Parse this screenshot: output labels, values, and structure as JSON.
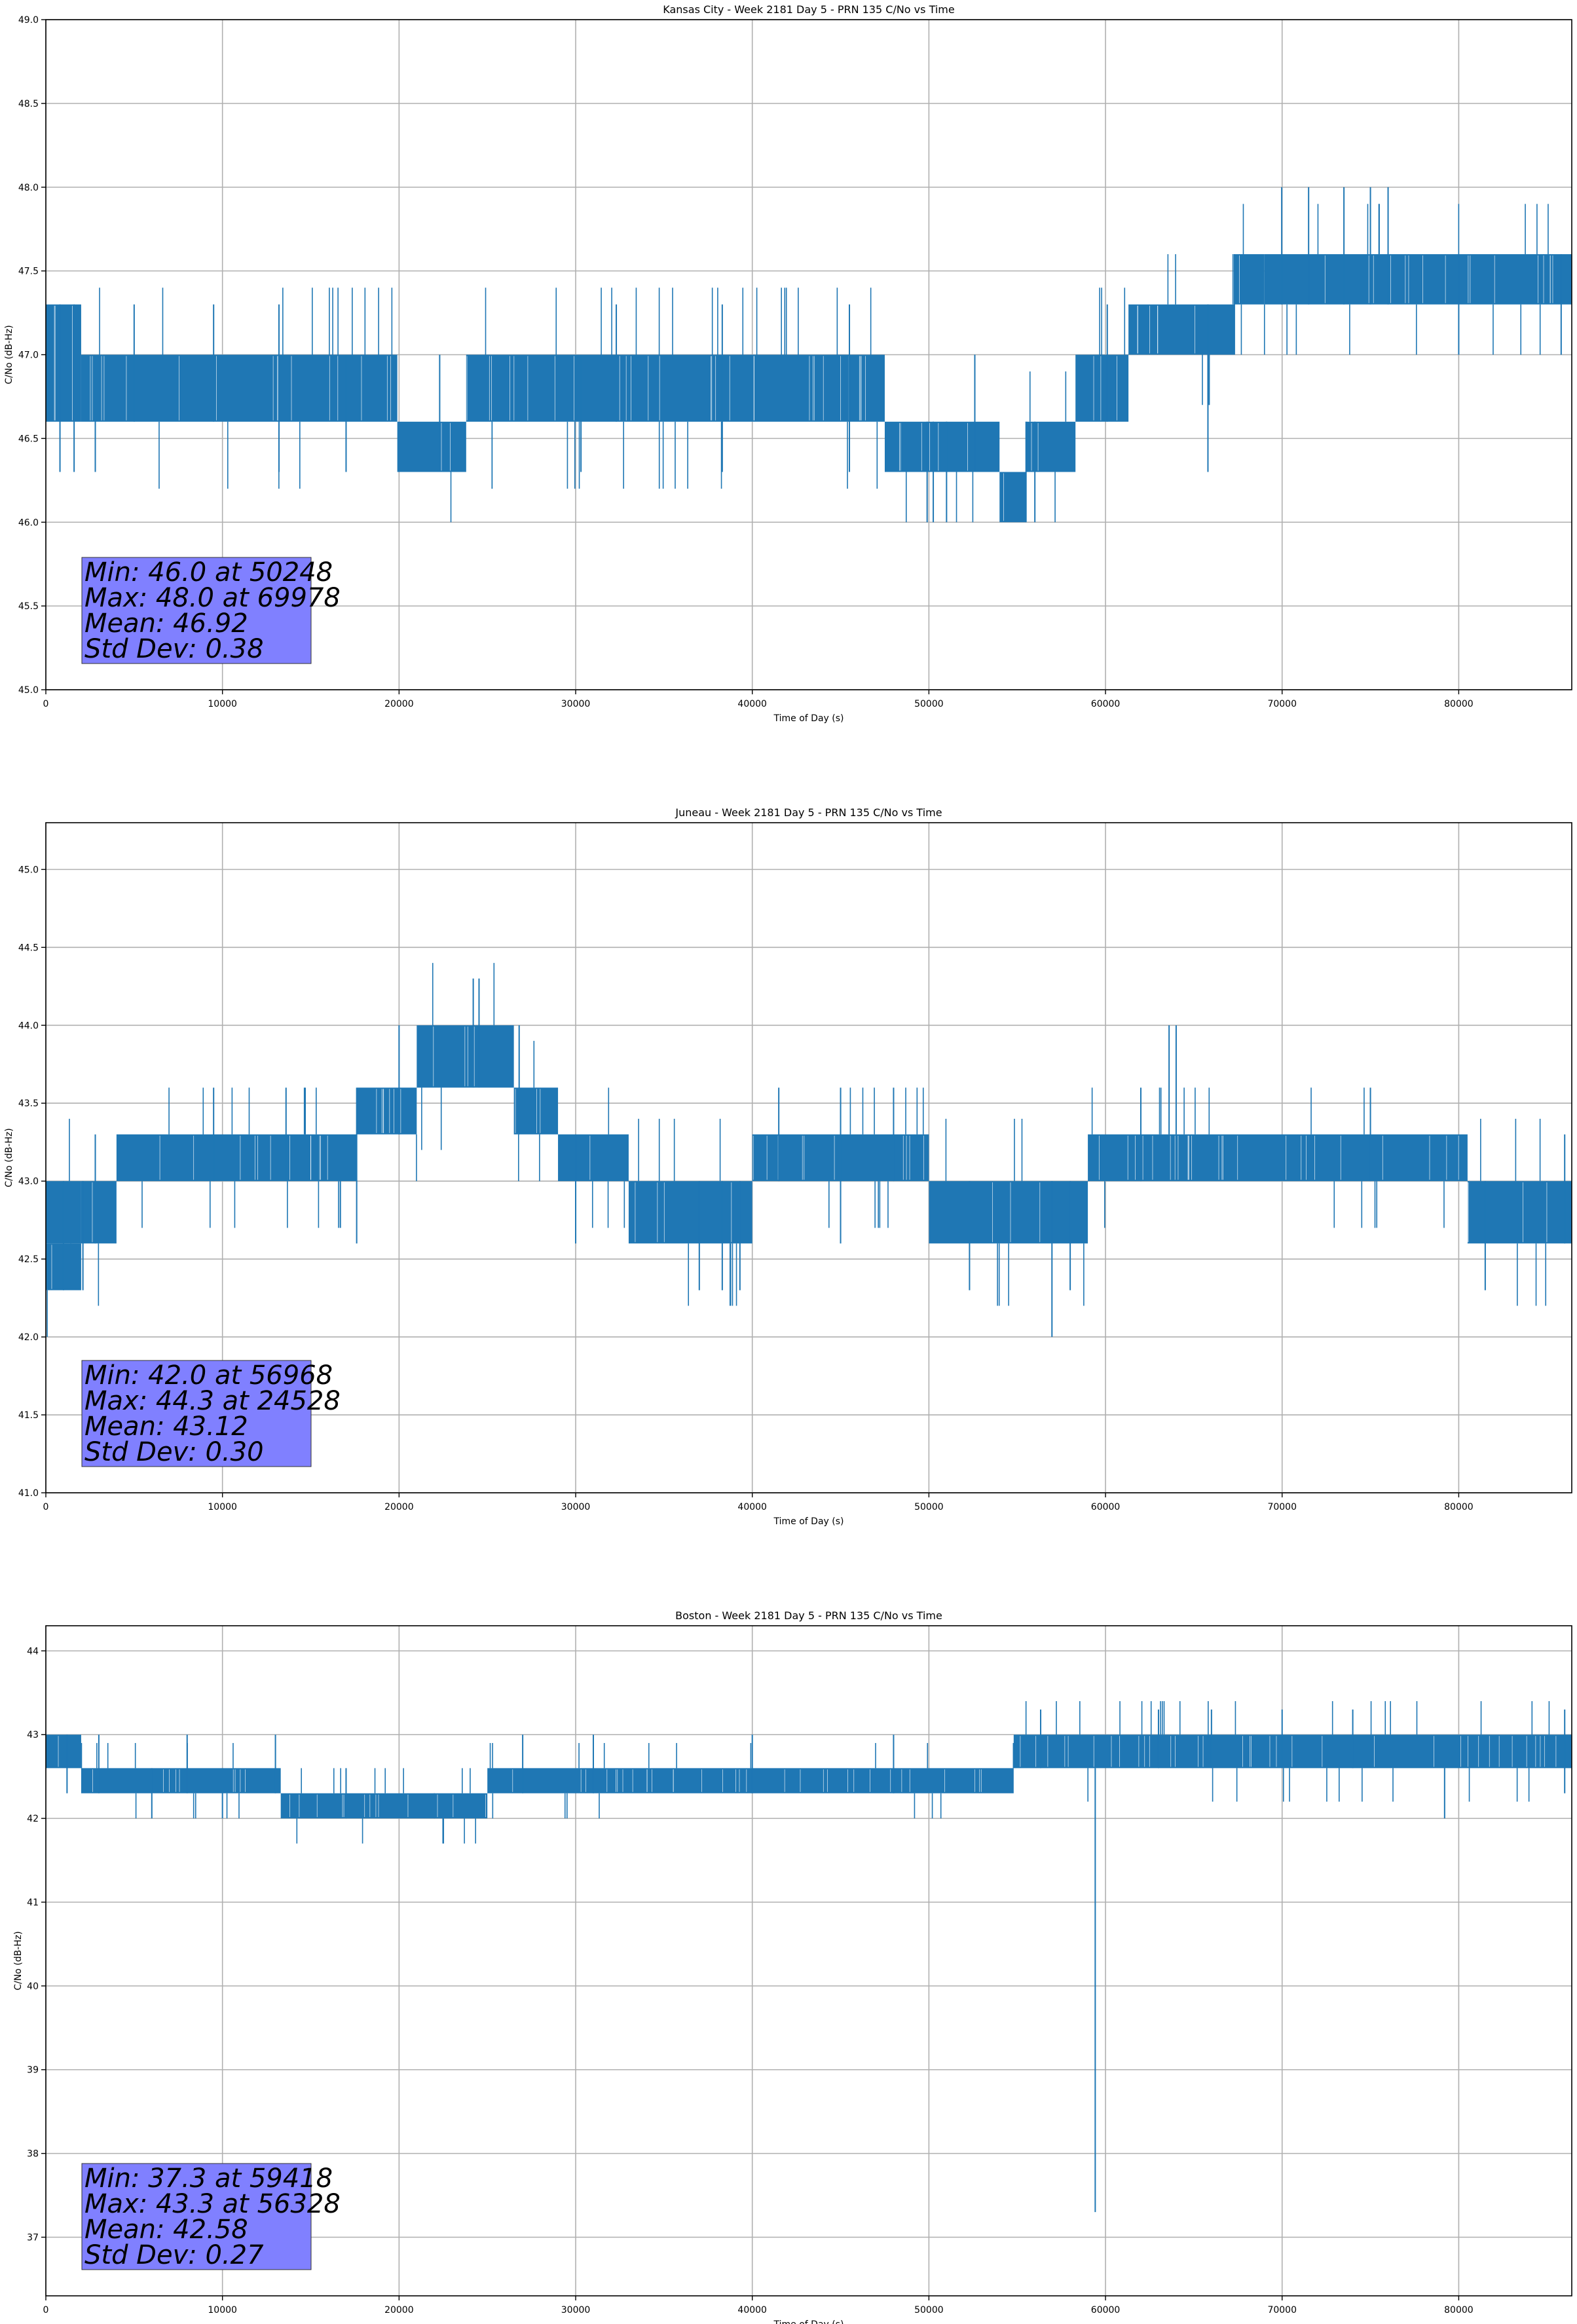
{
  "chart_data": [
    {
      "type": "line",
      "title": "Kansas City - Week 2181 Day 5 - PRN 135 C/No vs Time",
      "xlabel": "Time of Day (s)",
      "ylabel": "C/No (dB-Hz)",
      "xlim": [
        0,
        86400
      ],
      "ylim": [
        45.0,
        49.0
      ],
      "xticks": [
        "0",
        "10000",
        "20000",
        "30000",
        "40000",
        "50000",
        "60000",
        "70000",
        "80000"
      ],
      "yticks": [
        "45.0",
        "45.5",
        "46.0",
        "46.5",
        "47.0",
        "47.5",
        "48.0",
        "48.5",
        "49.0"
      ],
      "grid": true,
      "line_color": "#1f77b4",
      "stats_box_color": "#8080ff",
      "stats": [
        "Min: 46.0 at 50248",
        "Max: 48.0 at 69978",
        "Mean: 46.92",
        "Std Dev: 0.38"
      ],
      "band_segments": [
        {
          "x": [
            0,
            2000
          ],
          "range": [
            46.6,
            47.3
          ]
        },
        {
          "x": [
            2000,
            19900
          ],
          "range": [
            46.6,
            47.0
          ]
        },
        {
          "x": [
            19900,
            23800
          ],
          "range": [
            46.3,
            46.6
          ]
        },
        {
          "x": [
            23800,
            47500
          ],
          "range": [
            46.6,
            47.0
          ]
        },
        {
          "x": [
            47500,
            52600
          ],
          "range": [
            46.3,
            46.6
          ]
        },
        {
          "x": [
            52600,
            54000
          ],
          "range": [
            46.3,
            46.6
          ]
        },
        {
          "x": [
            54000,
            55500
          ],
          "range": [
            46.0,
            46.3
          ]
        },
        {
          "x": [
            55500,
            58300
          ],
          "range": [
            46.3,
            46.6
          ]
        },
        {
          "x": [
            58300,
            61300
          ],
          "range": [
            46.6,
            47.0
          ]
        },
        {
          "x": [
            61300,
            67300
          ],
          "range": [
            47.0,
            47.3
          ]
        },
        {
          "x": [
            67300,
            69000
          ],
          "range": [
            47.3,
            47.6
          ]
        },
        {
          "x": [
            69000,
            86400
          ],
          "range": [
            47.3,
            47.6
          ]
        }
      ],
      "spikes": [
        {
          "x": 800,
          "range": [
            46.3,
            47.3
          ]
        },
        {
          "x": 1600,
          "range": [
            46.3,
            47.3
          ]
        },
        {
          "x": 2800,
          "range": [
            46.3,
            47.0
          ]
        },
        {
          "x": 5000,
          "range": [
            46.6,
            47.3
          ]
        },
        {
          "x": 9500,
          "range": [
            46.6,
            47.3
          ]
        },
        {
          "x": 13200,
          "range": [
            46.3,
            47.3
          ]
        },
        {
          "x": 17000,
          "range": [
            46.3,
            47.0
          ]
        },
        {
          "x": 22300,
          "range": [
            46.3,
            47.0
          ]
        },
        {
          "x": 30300,
          "range": [
            46.3,
            47.0
          ]
        },
        {
          "x": 32300,
          "range": [
            46.6,
            47.3
          ]
        },
        {
          "x": 38300,
          "range": [
            46.3,
            47.3
          ]
        },
        {
          "x": 45500,
          "range": [
            46.3,
            47.3
          ]
        },
        {
          "x": 49900,
          "range": [
            46.0,
            46.6
          ]
        },
        {
          "x": 50248,
          "range": [
            46.0,
            46.6
          ]
        },
        {
          "x": 51000,
          "range": [
            46.0,
            46.6
          ]
        },
        {
          "x": 52600,
          "range": [
            46.3,
            47.0
          ]
        },
        {
          "x": 55500,
          "range": [
            46.0,
            46.6
          ]
        },
        {
          "x": 56000,
          "range": [
            46.0,
            46.6
          ]
        },
        {
          "x": 60100,
          "range": [
            46.6,
            47.3
          ]
        },
        {
          "x": 65800,
          "range": [
            46.3,
            47.3
          ]
        },
        {
          "x": 67300,
          "range": [
            47.0,
            47.6
          ]
        },
        {
          "x": 69978,
          "range": [
            47.3,
            48.0
          ]
        },
        {
          "x": 71500,
          "range": [
            47.3,
            48.0
          ]
        },
        {
          "x": 73500,
          "range": [
            47.3,
            48.0
          ]
        },
        {
          "x": 75000,
          "range": [
            47.3,
            48.0
          ]
        },
        {
          "x": 76000,
          "range": [
            47.3,
            48.0
          ]
        },
        {
          "x": 80000,
          "range": [
            47.0,
            47.6
          ]
        },
        {
          "x": 85800,
          "range": [
            47.0,
            47.6
          ]
        }
      ]
    },
    {
      "type": "line",
      "title": "Juneau - Week 2181 Day 5 - PRN 135 C/No vs Time",
      "xlabel": "Time of Day (s)",
      "ylabel": "C/No (dB-Hz)",
      "xlim": [
        0,
        86400
      ],
      "ylim": [
        41.0,
        45.3
      ],
      "xticks": [
        "0",
        "10000",
        "20000",
        "30000",
        "40000",
        "50000",
        "60000",
        "70000",
        "80000"
      ],
      "yticks": [
        "41.0",
        "41.5",
        "42.0",
        "42.5",
        "43.0",
        "43.5",
        "44.0",
        "44.5",
        "45.0"
      ],
      "grid": true,
      "line_color": "#1f77b4",
      "stats_box_color": "#8080ff",
      "stats": [
        "Min: 42.0 at 56968",
        "Max: 44.3 at 24528",
        "Mean: 43.12",
        "Std Dev: 0.30"
      ],
      "band_segments": [
        {
          "x": [
            0,
            2000
          ],
          "range": [
            42.3,
            42.6
          ]
        },
        {
          "x": [
            0,
            2000
          ],
          "range": [
            42.6,
            43.0
          ]
        },
        {
          "x": [
            2000,
            4000
          ],
          "range": [
            42.6,
            43.0
          ]
        },
        {
          "x": [
            4000,
            17600
          ],
          "range": [
            43.0,
            43.3
          ]
        },
        {
          "x": [
            17600,
            21000
          ],
          "range": [
            43.3,
            43.6
          ]
        },
        {
          "x": [
            21000,
            26500
          ],
          "range": [
            43.6,
            44.0
          ]
        },
        {
          "x": [
            26500,
            29000
          ],
          "range": [
            43.3,
            43.6
          ]
        },
        {
          "x": [
            29000,
            33000
          ],
          "range": [
            43.0,
            43.3
          ]
        },
        {
          "x": [
            33000,
            40000
          ],
          "range": [
            42.6,
            43.0
          ]
        },
        {
          "x": [
            40000,
            50000
          ],
          "range": [
            43.0,
            43.3
          ]
        },
        {
          "x": [
            50000,
            59000
          ],
          "range": [
            42.6,
            43.0
          ]
        },
        {
          "x": [
            59000,
            80500
          ],
          "range": [
            43.0,
            43.3
          ]
        },
        {
          "x": [
            80500,
            86400
          ],
          "range": [
            42.6,
            43.0
          ]
        }
      ],
      "spikes": [
        {
          "x": 1000,
          "range": [
            42.3,
            43.0
          ]
        },
        {
          "x": 2100,
          "range": [
            42.3,
            43.0
          ]
        },
        {
          "x": 2800,
          "range": [
            42.6,
            43.3
          ]
        },
        {
          "x": 9500,
          "range": [
            43.0,
            43.6
          ]
        },
        {
          "x": 13600,
          "range": [
            43.0,
            43.6
          ]
        },
        {
          "x": 17600,
          "range": [
            42.6,
            43.6
          ]
        },
        {
          "x": 20000,
          "range": [
            43.3,
            44.0
          ]
        },
        {
          "x": 24200,
          "range": [
            43.6,
            44.3
          ]
        },
        {
          "x": 24528,
          "range": [
            43.6,
            44.3
          ]
        },
        {
          "x": 26800,
          "range": [
            43.3,
            44.0
          ]
        },
        {
          "x": 30000,
          "range": [
            42.6,
            43.3
          ]
        },
        {
          "x": 37000,
          "range": [
            42.3,
            43.0
          ]
        },
        {
          "x": 38300,
          "range": [
            42.3,
            43.0
          ]
        },
        {
          "x": 39300,
          "range": [
            42.3,
            43.0
          ]
        },
        {
          "x": 41500,
          "range": [
            43.0,
            43.6
          ]
        },
        {
          "x": 45000,
          "range": [
            42.6,
            43.6
          ]
        },
        {
          "x": 48000,
          "range": [
            43.0,
            43.6
          ]
        },
        {
          "x": 52300,
          "range": [
            42.3,
            43.0
          ]
        },
        {
          "x": 56968,
          "range": [
            42.0,
            43.0
          ]
        },
        {
          "x": 58000,
          "range": [
            42.3,
            43.0
          ]
        },
        {
          "x": 62000,
          "range": [
            43.0,
            43.6
          ]
        },
        {
          "x": 63600,
          "range": [
            43.3,
            44.0
          ]
        },
        {
          "x": 64000,
          "range": [
            43.3,
            44.0
          ]
        },
        {
          "x": 75000,
          "range": [
            43.0,
            43.6
          ]
        },
        {
          "x": 81500,
          "range": [
            42.3,
            43.0
          ]
        },
        {
          "x": 86000,
          "range": [
            42.6,
            43.3
          ]
        }
      ]
    },
    {
      "type": "line",
      "title": "Boston - Week 2181 Day 5 - PRN 135 C/No vs Time",
      "xlabel": "Time of Day (s)",
      "ylabel": "C/No (dB-Hz)",
      "xlim": [
        0,
        86400
      ],
      "ylim": [
        36.3,
        44.3
      ],
      "xticks": [
        "0",
        "10000",
        "20000",
        "30000",
        "40000",
        "50000",
        "60000",
        "70000",
        "80000"
      ],
      "yticks": [
        "37",
        "38",
        "39",
        "40",
        "41",
        "42",
        "43",
        "44"
      ],
      "grid": true,
      "line_color": "#1f77b4",
      "stats_box_color": "#8080ff",
      "stats": [
        "Min: 37.3 at 59418",
        "Max: 43.3 at 56328",
        "Mean: 42.58",
        "Std Dev: 0.27"
      ],
      "band_segments": [
        {
          "x": [
            0,
            2000
          ],
          "range": [
            42.6,
            43.0
          ]
        },
        {
          "x": [
            2000,
            13300
          ],
          "range": [
            42.3,
            42.6
          ]
        },
        {
          "x": [
            13300,
            25000
          ],
          "range": [
            42.0,
            42.3
          ]
        },
        {
          "x": [
            25000,
            54800
          ],
          "range": [
            42.3,
            42.6
          ]
        },
        {
          "x": [
            54800,
            86400
          ],
          "range": [
            42.6,
            43.0
          ]
        }
      ],
      "spikes": [
        {
          "x": 1200,
          "range": [
            42.3,
            43.0
          ]
        },
        {
          "x": 3000,
          "range": [
            42.3,
            43.0
          ]
        },
        {
          "x": 6000,
          "range": [
            42.0,
            42.6
          ]
        },
        {
          "x": 8000,
          "range": [
            42.3,
            43.0
          ]
        },
        {
          "x": 10000,
          "range": [
            42.0,
            42.6
          ]
        },
        {
          "x": 13000,
          "range": [
            42.3,
            43.0
          ]
        },
        {
          "x": 17000,
          "range": [
            42.0,
            42.6
          ]
        },
        {
          "x": 22000,
          "range": [
            42.0,
            42.3
          ]
        },
        {
          "x": 27000,
          "range": [
            42.3,
            43.0
          ]
        },
        {
          "x": 31000,
          "range": [
            42.3,
            43.0
          ]
        },
        {
          "x": 40000,
          "range": [
            42.3,
            43.0
          ]
        },
        {
          "x": 48000,
          "range": [
            42.3,
            43.0
          ]
        },
        {
          "x": 56328,
          "range": [
            42.6,
            43.3
          ]
        },
        {
          "x": 59418,
          "range": [
            37.3,
            42.6
          ]
        },
        {
          "x": 63000,
          "range": [
            42.6,
            43.3
          ]
        },
        {
          "x": 66000,
          "range": [
            42.6,
            43.3
          ]
        },
        {
          "x": 70000,
          "range": [
            42.6,
            43.3
          ]
        },
        {
          "x": 74000,
          "range": [
            42.6,
            43.3
          ]
        },
        {
          "x": 79200,
          "range": [
            42.0,
            42.6
          ]
        },
        {
          "x": 86000,
          "range": [
            42.3,
            43.3
          ]
        }
      ]
    }
  ]
}
